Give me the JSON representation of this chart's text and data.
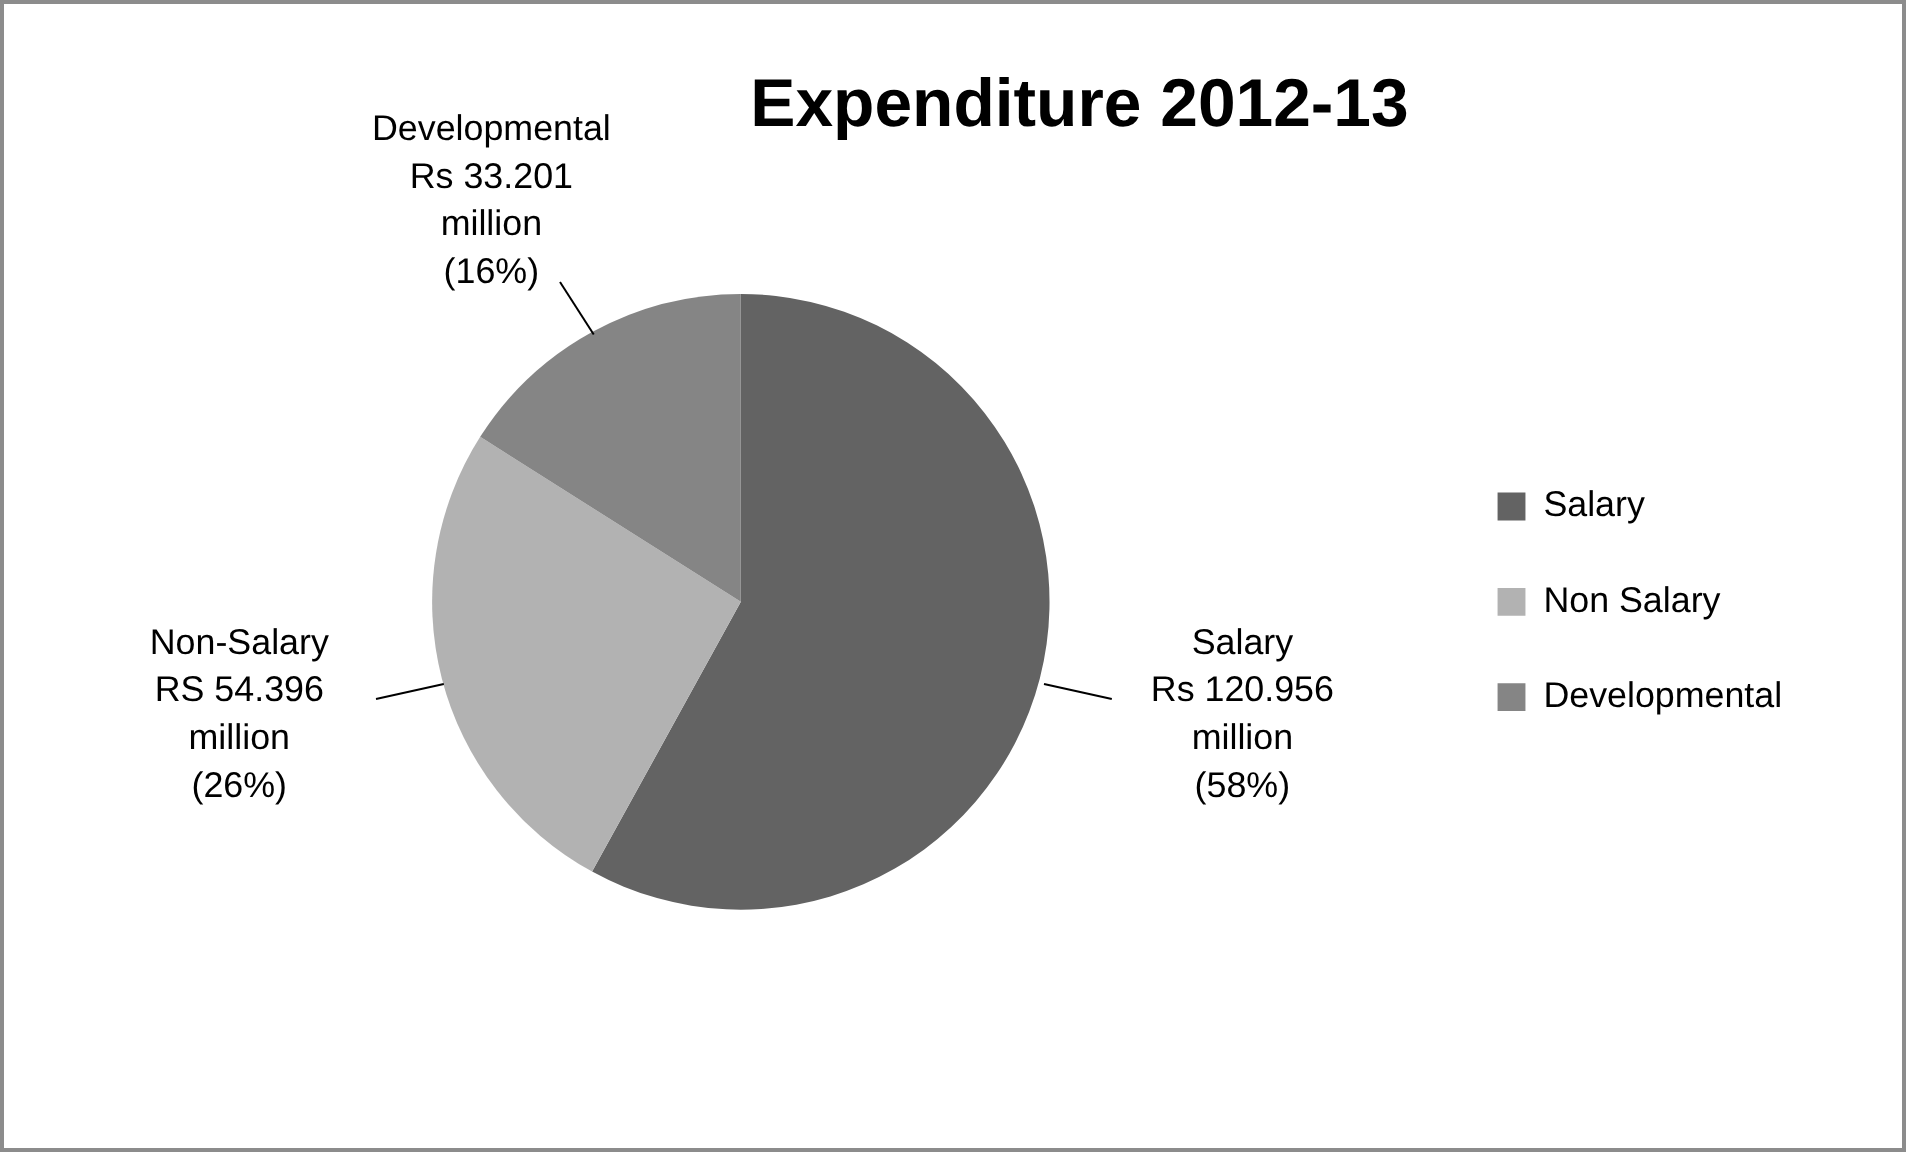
{
  "chart_data": {
    "type": "pie",
    "title": "Expenditure 2012-13",
    "categories": [
      "Salary",
      "Non Salary",
      "Developmental"
    ],
    "values": [
      58,
      26,
      16
    ],
    "colors": [
      "#636363",
      "#b2b2b2",
      "#858585"
    ],
    "annotations": [
      "Salary\nRs 120.956\nmillion\n(58%)",
      "Non-Salary\nRS 54.396\nmillion\n(26%)",
      "Developmental\nRs 33.201\nmillion\n(16%)"
    ],
    "legend": "right"
  }
}
